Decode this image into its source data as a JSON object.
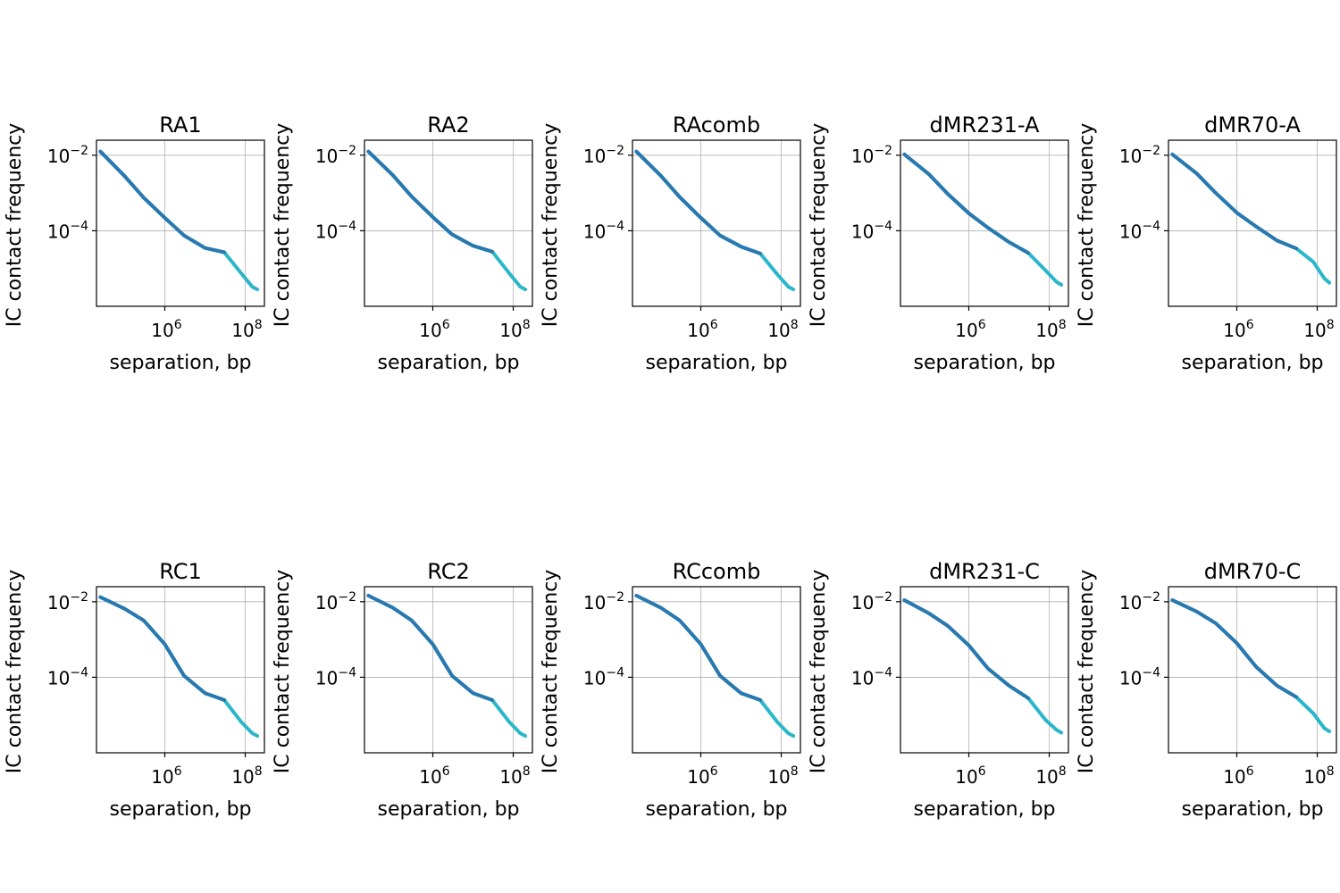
{
  "chart_data": [
    {
      "type": "line",
      "title": "RA1",
      "xlabel": "separation, bp",
      "ylabel": "IC contact frequency",
      "xscale": "log",
      "yscale": "log",
      "xlim": [
        20000,
        300000000
      ],
      "ylim": [
        1e-06,
        0.025
      ],
      "grid": true,
      "colors": [
        "#2ab7c9",
        "#2a78b0"
      ],
      "xticks": [
        {
          "base": "10",
          "exp": "6",
          "value": 1000000
        },
        {
          "base": "10",
          "exp": "8",
          "value": 100000000
        }
      ],
      "yticks": [
        {
          "base": "10",
          "exp": "−2",
          "value": 0.01
        },
        {
          "base": "10",
          "exp": "−4",
          "value": 0.0001
        }
      ],
      "x": [
        25000,
        100000,
        300000,
        1000000,
        3000000,
        10000000,
        30000000,
        80000000,
        150000000,
        200000000
      ],
      "y": [
        0.0125,
        0.0028,
        0.00075,
        0.00022,
        7.5e-05,
        3.5e-05,
        2.7e-05,
        7.4e-06,
        3.3e-06,
        2.8e-06
      ]
    },
    {
      "type": "line",
      "title": "RA2",
      "xlabel": "separation, bp",
      "ylabel": "IC contact frequency",
      "xscale": "log",
      "yscale": "log",
      "xlim": [
        20000,
        300000000
      ],
      "ylim": [
        1e-06,
        0.025
      ],
      "grid": true,
      "colors": [
        "#2ab7c9",
        "#2a78b0"
      ],
      "xticks": [
        {
          "base": "10",
          "exp": "6",
          "value": 1000000
        },
        {
          "base": "10",
          "exp": "8",
          "value": 100000000
        }
      ],
      "yticks": [
        {
          "base": "10",
          "exp": "−2",
          "value": 0.01
        },
        {
          "base": "10",
          "exp": "−4",
          "value": 0.0001
        }
      ],
      "x": [
        25000,
        100000,
        300000,
        1000000,
        3000000,
        10000000,
        30000000,
        80000000,
        150000000,
        200000000
      ],
      "y": [
        0.0125,
        0.003,
        0.0008,
        0.00023,
        8e-05,
        4e-05,
        2.8e-05,
        7.4e-06,
        3.3e-06,
        2.8e-06
      ]
    },
    {
      "type": "line",
      "title": "RAcomb",
      "xlabel": "separation, bp",
      "ylabel": "IC contact frequency",
      "xscale": "log",
      "yscale": "log",
      "xlim": [
        20000,
        300000000
      ],
      "ylim": [
        1e-06,
        0.025
      ],
      "grid": true,
      "colors": [
        "#2ab7c9",
        "#2a78b0"
      ],
      "xticks": [
        {
          "base": "10",
          "exp": "6",
          "value": 1000000
        },
        {
          "base": "10",
          "exp": "8",
          "value": 100000000
        }
      ],
      "yticks": [
        {
          "base": "10",
          "exp": "−2",
          "value": 0.01
        },
        {
          "base": "10",
          "exp": "−4",
          "value": 0.0001
        }
      ],
      "x": [
        25000,
        100000,
        300000,
        1000000,
        3000000,
        10000000,
        30000000,
        80000000,
        150000000,
        200000000
      ],
      "y": [
        0.0125,
        0.0029,
        0.00078,
        0.00022,
        7.5e-05,
        3.8e-05,
        2.5e-05,
        7e-06,
        3.3e-06,
        2.8e-06
      ]
    },
    {
      "type": "line",
      "title": "dMR231-A",
      "xlabel": "separation, bp",
      "ylabel": "IC contact frequency",
      "xscale": "log",
      "yscale": "log",
      "xlim": [
        20000,
        300000000
      ],
      "ylim": [
        1e-06,
        0.025
      ],
      "grid": true,
      "colors": [
        "#2ab7c9",
        "#2a78b0"
      ],
      "xticks": [
        {
          "base": "10",
          "exp": "6",
          "value": 1000000
        },
        {
          "base": "10",
          "exp": "8",
          "value": 100000000
        }
      ],
      "yticks": [
        {
          "base": "10",
          "exp": "−2",
          "value": 0.01
        },
        {
          "base": "10",
          "exp": "−4",
          "value": 0.0001
        }
      ],
      "x": [
        25000,
        100000,
        300000,
        1000000,
        3000000,
        10000000,
        30000000,
        80000000,
        150000000,
        200000000
      ],
      "y": [
        0.0105,
        0.0032,
        0.00095,
        0.00029,
        0.00012,
        5e-05,
        2.6e-05,
        9e-06,
        4.5e-06,
        3.7e-06
      ]
    },
    {
      "type": "line",
      "title": "dMR70-A",
      "xlabel": "separation, bp",
      "ylabel": "IC contact frequency",
      "xscale": "log",
      "yscale": "log",
      "xlim": [
        20000,
        300000000
      ],
      "ylim": [
        1e-06,
        0.025
      ],
      "grid": true,
      "colors": [
        "#2ab7c9",
        "#2a78b0"
      ],
      "xticks": [
        {
          "base": "10",
          "exp": "6",
          "value": 1000000
        },
        {
          "base": "10",
          "exp": "8",
          "value": 100000000
        }
      ],
      "yticks": [
        {
          "base": "10",
          "exp": "−2",
          "value": 0.01
        },
        {
          "base": "10",
          "exp": "−4",
          "value": 0.0001
        }
      ],
      "x": [
        25000,
        100000,
        300000,
        1000000,
        3000000,
        10000000,
        30000000,
        80000000,
        150000000,
        200000000
      ],
      "y": [
        0.0105,
        0.0033,
        0.001,
        0.0003,
        0.00013,
        5.5e-05,
        3.4e-05,
        1.5e-05,
        5.5e-06,
        4.2e-06
      ]
    },
    {
      "type": "line",
      "title": "RC1",
      "xlabel": "separation, bp",
      "ylabel": "IC contact frequency",
      "xscale": "log",
      "yscale": "log",
      "xlim": [
        20000,
        300000000
      ],
      "ylim": [
        1e-06,
        0.025
      ],
      "grid": true,
      "colors": [
        "#2ab7c9",
        "#2a78b0"
      ],
      "xticks": [
        {
          "base": "10",
          "exp": "6",
          "value": 1000000
        },
        {
          "base": "10",
          "exp": "8",
          "value": 100000000
        }
      ],
      "yticks": [
        {
          "base": "10",
          "exp": "−2",
          "value": 0.01
        },
        {
          "base": "10",
          "exp": "−4",
          "value": 0.0001
        }
      ],
      "x": [
        25000,
        100000,
        300000,
        1000000,
        3000000,
        10000000,
        30000000,
        80000000,
        150000000,
        200000000
      ],
      "y": [
        0.0132,
        0.0065,
        0.0032,
        0.00075,
        0.00011,
        3.8e-05,
        2.5e-05,
        6.5e-06,
        3.3e-06,
        2.8e-06
      ]
    },
    {
      "type": "line",
      "title": "RC2",
      "xlabel": "separation, bp",
      "ylabel": "IC contact frequency",
      "xscale": "log",
      "yscale": "log",
      "xlim": [
        20000,
        300000000
      ],
      "ylim": [
        1e-06,
        0.025
      ],
      "grid": true,
      "colors": [
        "#2ab7c9",
        "#2a78b0"
      ],
      "xticks": [
        {
          "base": "10",
          "exp": "6",
          "value": 1000000
        },
        {
          "base": "10",
          "exp": "8",
          "value": 100000000
        }
      ],
      "yticks": [
        {
          "base": "10",
          "exp": "−2",
          "value": 0.01
        },
        {
          "base": "10",
          "exp": "−4",
          "value": 0.0001
        }
      ],
      "x": [
        25000,
        100000,
        300000,
        1000000,
        3000000,
        10000000,
        30000000,
        80000000,
        150000000,
        200000000
      ],
      "y": [
        0.0145,
        0.007,
        0.0032,
        0.00075,
        0.00011,
        3.8e-05,
        2.5e-05,
        6.5e-06,
        3.3e-06,
        2.8e-06
      ]
    },
    {
      "type": "line",
      "title": "RCcomb",
      "xlabel": "separation, bp",
      "ylabel": "IC contact frequency",
      "xscale": "log",
      "yscale": "log",
      "xlim": [
        20000,
        300000000
      ],
      "ylim": [
        1e-06,
        0.025
      ],
      "grid": true,
      "colors": [
        "#2ab7c9",
        "#2a78b0"
      ],
      "xticks": [
        {
          "base": "10",
          "exp": "6",
          "value": 1000000
        },
        {
          "base": "10",
          "exp": "8",
          "value": 100000000
        }
      ],
      "yticks": [
        {
          "base": "10",
          "exp": "−2",
          "value": 0.01
        },
        {
          "base": "10",
          "exp": "−4",
          "value": 0.0001
        }
      ],
      "x": [
        25000,
        100000,
        300000,
        1000000,
        3000000,
        10000000,
        30000000,
        80000000,
        150000000,
        200000000
      ],
      "y": [
        0.0145,
        0.007,
        0.0032,
        0.00075,
        0.00011,
        3.8e-05,
        2.5e-05,
        6.5e-06,
        3.3e-06,
        2.8e-06
      ]
    },
    {
      "type": "line",
      "title": "dMR231-C",
      "xlabel": "separation, bp",
      "ylabel": "IC contact frequency",
      "xscale": "log",
      "yscale": "log",
      "xlim": [
        20000,
        300000000
      ],
      "ylim": [
        1e-06,
        0.025
      ],
      "grid": true,
      "colors": [
        "#2ab7c9",
        "#2a78b0"
      ],
      "xticks": [
        {
          "base": "10",
          "exp": "6",
          "value": 1000000
        },
        {
          "base": "10",
          "exp": "8",
          "value": 100000000
        }
      ],
      "yticks": [
        {
          "base": "10",
          "exp": "−2",
          "value": 0.01
        },
        {
          "base": "10",
          "exp": "−4",
          "value": 0.0001
        }
      ],
      "x": [
        25000,
        100000,
        300000,
        1000000,
        3000000,
        10000000,
        30000000,
        80000000,
        150000000,
        200000000
      ],
      "y": [
        0.011,
        0.005,
        0.0023,
        0.0007,
        0.00017,
        6e-05,
        2.8e-05,
        7.5e-06,
        4.1e-06,
        3.4e-06
      ]
    },
    {
      "type": "line",
      "title": "dMR70-C",
      "xlabel": "separation, bp",
      "ylabel": "IC contact frequency",
      "xscale": "log",
      "yscale": "log",
      "xlim": [
        20000,
        300000000
      ],
      "ylim": [
        1e-06,
        0.025
      ],
      "grid": true,
      "colors": [
        "#2ab7c9",
        "#2a78b0"
      ],
      "xticks": [
        {
          "base": "10",
          "exp": "6",
          "value": 1000000
        },
        {
          "base": "10",
          "exp": "8",
          "value": 100000000
        }
      ],
      "yticks": [
        {
          "base": "10",
          "exp": "−2",
          "value": 0.01
        },
        {
          "base": "10",
          "exp": "−4",
          "value": 0.0001
        }
      ],
      "x": [
        25000,
        100000,
        300000,
        1000000,
        3000000,
        10000000,
        30000000,
        80000000,
        150000000,
        200000000
      ],
      "y": [
        0.011,
        0.0055,
        0.0027,
        0.0008,
        0.00019,
        6e-05,
        3e-05,
        1.1e-05,
        4.5e-06,
        3.7e-06
      ]
    }
  ]
}
